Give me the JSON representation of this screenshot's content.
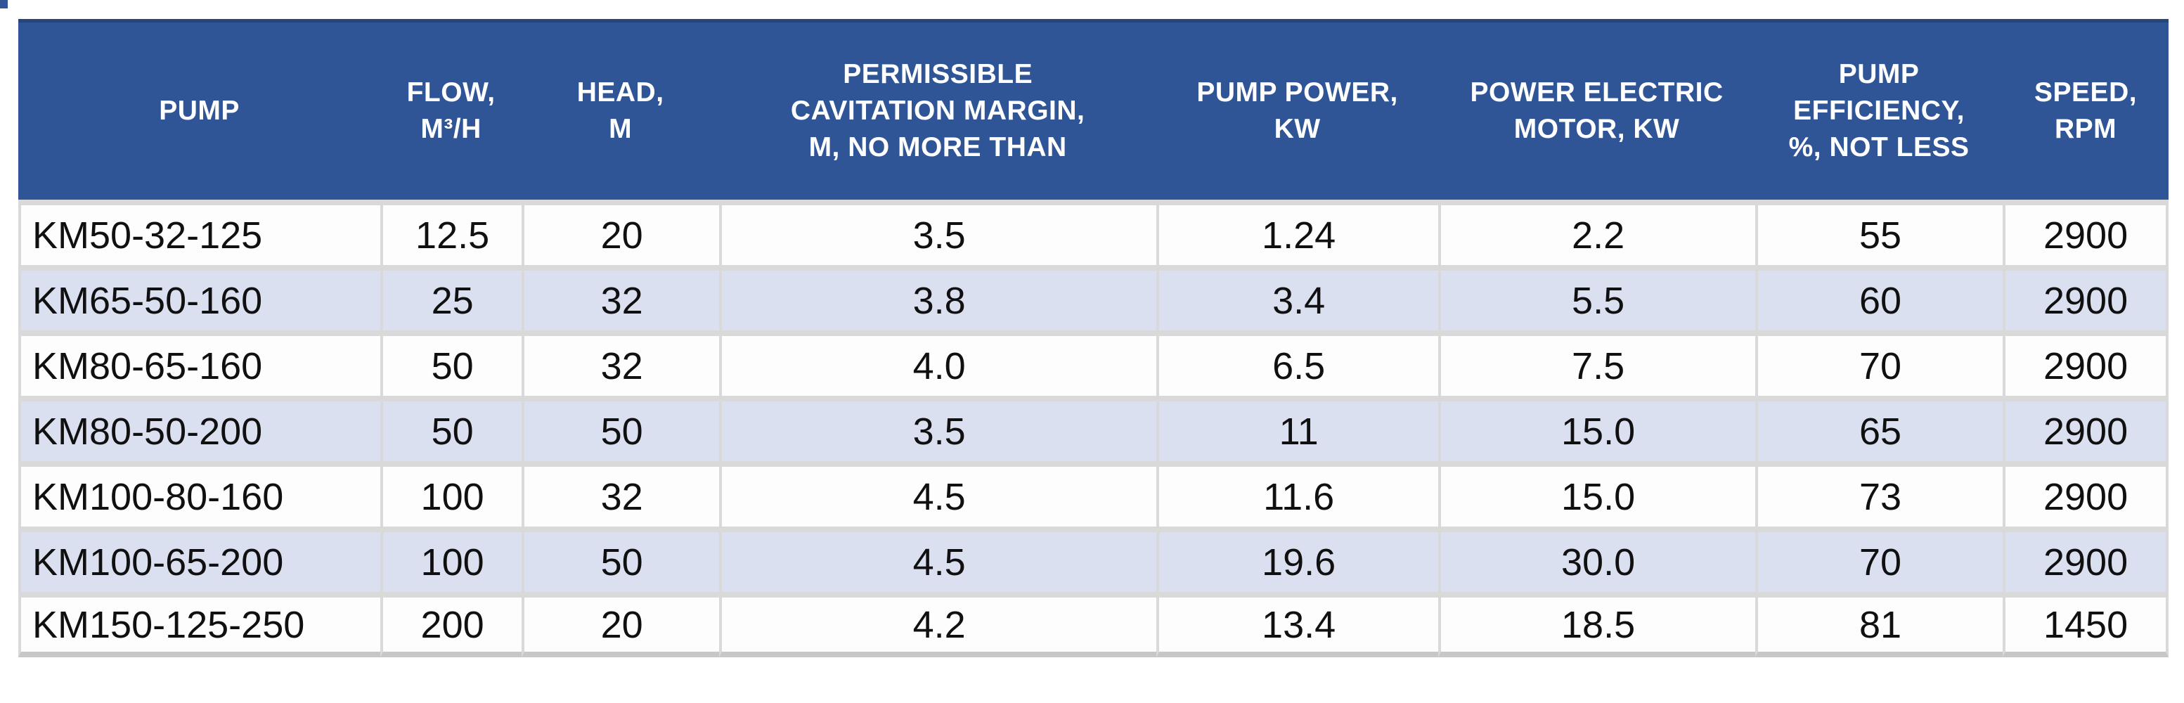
{
  "style": {
    "header_bg": "#2f5596",
    "header_text": "#ffffff",
    "row_bg": "#fdfdfd",
    "row_alt_bg": "#dbe0f1",
    "grid": "#d9d9d9",
    "bottom_border": "#c7c7c7",
    "cell_text": "#101010"
  },
  "chart_data": {
    "type": "table",
    "title": "",
    "columns": [
      {
        "id": "pump",
        "label": "PUMP",
        "header_lines": [
          "PUMP"
        ]
      },
      {
        "id": "flow",
        "label": "FLOW, M³/H",
        "header_lines": [
          "FLOW,",
          "M³/H"
        ]
      },
      {
        "id": "head",
        "label": "HEAD, M",
        "header_lines": [
          "HEAD,",
          "M"
        ]
      },
      {
        "id": "cavitation",
        "label": "PERMISSIBLE CAVITATION MARGIN, M, NO MORE THAN",
        "header_lines": [
          "PERMISSIBLE",
          "CAVITATION MARGIN,",
          "M, NO MORE THAN"
        ]
      },
      {
        "id": "pump_power",
        "label": "PUMP POWER, KW",
        "header_lines": [
          "PUMP POWER,",
          "KW"
        ]
      },
      {
        "id": "motor_power",
        "label": "POWER ELECTRIC MOTOR, KW",
        "header_lines": [
          "POWER ELECTRIC",
          "MOTOR, KW"
        ]
      },
      {
        "id": "efficiency",
        "label": "PUMP EFFICIENCY, %, NOT LESS",
        "header_lines": [
          "PUMP",
          "EFFICIENCY,",
          "%, NOT LESS"
        ]
      },
      {
        "id": "speed",
        "label": "SPEED, RPM",
        "header_lines": [
          "SPEED,",
          "RPM"
        ]
      }
    ],
    "rows": [
      [
        "KM50-32-125",
        "12.5",
        "20",
        "3.5",
        "1.24",
        "2.2",
        "55",
        "2900"
      ],
      [
        "KM65-50-160",
        "25",
        "32",
        "3.8",
        "3.4",
        "5.5",
        "60",
        "2900"
      ],
      [
        "KM80-65-160",
        "50",
        "32",
        "4.0",
        "6.5",
        "7.5",
        "70",
        "2900"
      ],
      [
        "KM80-50-200",
        "50",
        "50",
        "3.5",
        "11",
        "15.0",
        "65",
        "2900"
      ],
      [
        "KM100-80-160",
        "100",
        "32",
        "4.5",
        "11.6",
        "15.0",
        "73",
        "2900"
      ],
      [
        "KM100-65-200",
        "100",
        "50",
        "4.5",
        "19.6",
        "30.0",
        "70",
        "2900"
      ],
      [
        "KM150-125-250",
        "200",
        "20",
        "4.2",
        "13.4",
        "18.5",
        "81",
        "1450"
      ]
    ]
  }
}
